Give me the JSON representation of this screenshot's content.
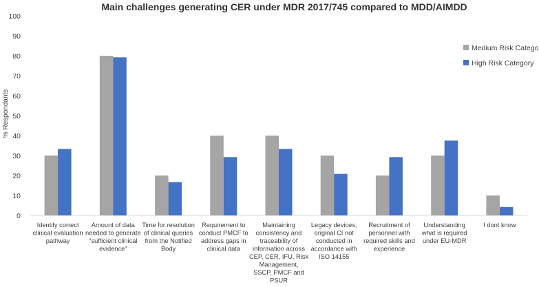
{
  "chart_data": {
    "type": "bar",
    "title": "Main challenges generating CER under MDR 2017/745 compared to MDD/AIMDD",
    "xlabel": "",
    "ylabel": "% Respondants",
    "ylim": [
      0,
      100
    ],
    "yticks": [
      0,
      10,
      20,
      30,
      40,
      50,
      60,
      70,
      80,
      90,
      100
    ],
    "grid": false,
    "legend_position": "right",
    "categories": [
      [
        "Identify correct",
        "clinical evaluation",
        "pathway"
      ],
      [
        "Amount of data",
        "needed to generate",
        "\"sufficient clinical",
        "evidence\""
      ],
      [
        "Time for resolution",
        "of clinical queries",
        "from the Notified",
        "Body"
      ],
      [
        "Requirement to",
        "conduct PMCF to",
        "address gaps in",
        "clinical data"
      ],
      [
        "Maintaining",
        "consistency and",
        "traceability of",
        "information across",
        "CEP, CER, IFU, Risk",
        "Management,",
        "SSCP, PMCF and",
        "PSUR"
      ],
      [
        "Legacy devices,",
        "original CI not",
        "conducted in",
        "accordance with",
        "ISO 14155"
      ],
      [
        "Recruitment of",
        "personnel with",
        "required skills and",
        "experience"
      ],
      [
        "Understanding",
        "what is required",
        "under EU-MDR"
      ],
      [
        "I dont know"
      ]
    ],
    "series": [
      {
        "name": "Medium Risk Category",
        "color": "#a5a5a5",
        "values": [
          30,
          80,
          20,
          40,
          40,
          30,
          20,
          30,
          10
        ]
      },
      {
        "name": "High Risk Category",
        "color": "#4472c4",
        "values": [
          33.3,
          79.2,
          16.7,
          29.2,
          33.3,
          20.8,
          29.2,
          37.5,
          4.2
        ]
      }
    ]
  }
}
